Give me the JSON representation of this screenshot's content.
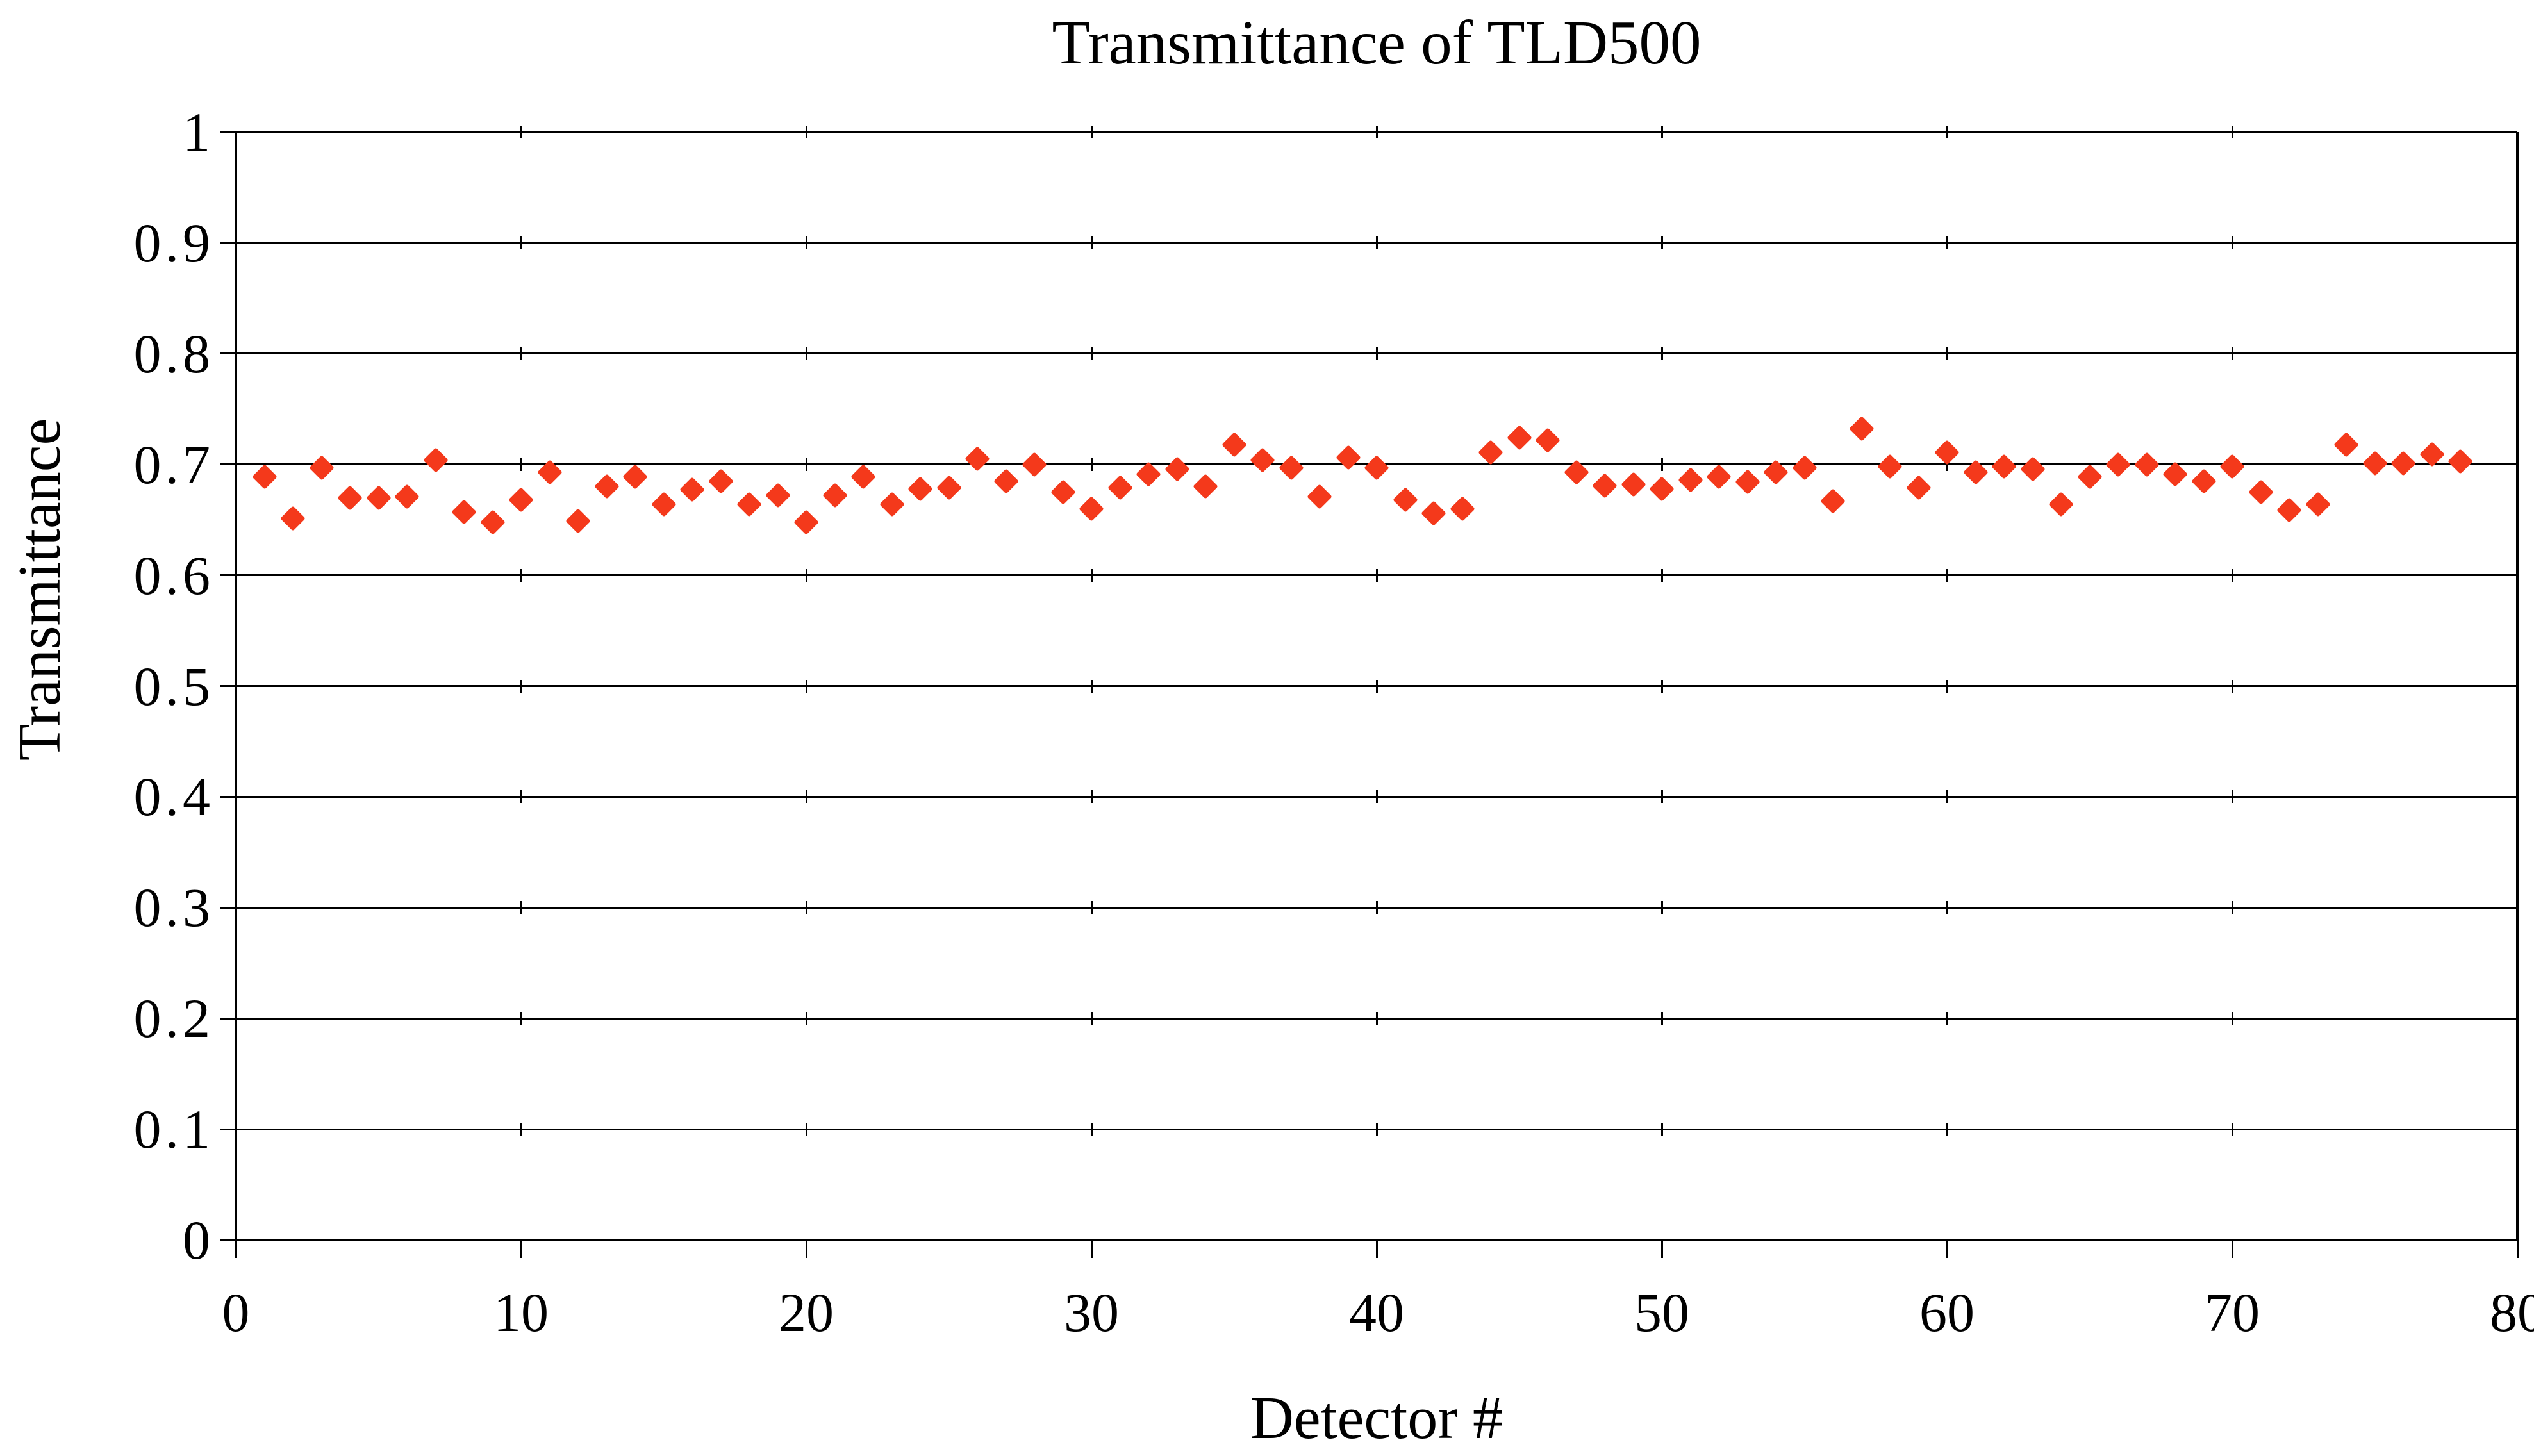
{
  "chart": {
    "title": "Transmittance of TLD500",
    "marker_color": "#f4391b",
    "line_color": "#000000",
    "background_color": "#ffffff"
  },
  "chart_data": {
    "type": "scatter",
    "title": "Transmittance of TLD500",
    "xlabel": "Detector #",
    "ylabel": "Transmittance",
    "xlim": [
      0,
      80
    ],
    "ylim": [
      0,
      1
    ],
    "x_tick_labels": [
      "0",
      "10",
      "20",
      "30",
      "40",
      "50",
      "60",
      "70",
      "80"
    ],
    "x_tick_values": [
      0,
      10,
      20,
      30,
      40,
      50,
      60,
      70,
      80
    ],
    "y_tick_labels": [
      "0",
      "0.1",
      "0.2",
      "0.3",
      "0.4",
      "0.5",
      "0.6",
      "0.7",
      "0.8",
      "0.9",
      "1"
    ],
    "y_tick_values": [
      0,
      0.1,
      0.2,
      0.3,
      0.4,
      0.5,
      0.6,
      0.7,
      0.8,
      0.9,
      1
    ],
    "grid": "horizontal",
    "legend": "none",
    "marker": "diamond",
    "series_name": "Transmittance",
    "x": [
      1,
      2,
      3,
      4,
      5,
      6,
      7,
      8,
      9,
      10,
      11,
      12,
      13,
      14,
      15,
      16,
      17,
      18,
      19,
      20,
      21,
      22,
      23,
      24,
      25,
      26,
      27,
      28,
      29,
      30,
      31,
      32,
      33,
      34,
      35,
      36,
      37,
      38,
      39,
      40,
      41,
      42,
      43,
      44,
      45,
      46,
      47,
      48,
      49,
      50,
      51,
      52,
      53,
      54,
      55,
      56,
      57,
      58,
      59,
      60,
      61,
      62,
      63,
      64,
      65,
      66,
      67,
      68,
      69,
      70,
      71,
      72,
      73,
      74,
      75,
      76,
      77,
      78
    ],
    "y": [
      0.689,
      0.651,
      0.697,
      0.67,
      0.67,
      0.671,
      0.704,
      0.657,
      0.648,
      0.668,
      0.693,
      0.649,
      0.68,
      0.689,
      0.664,
      0.677,
      0.685,
      0.664,
      0.672,
      0.648,
      0.672,
      0.689,
      0.664,
      0.678,
      0.679,
      0.705,
      0.685,
      0.7,
      0.675,
      0.66,
      0.679,
      0.691,
      0.696,
      0.68,
      0.718,
      0.704,
      0.697,
      0.671,
      0.706,
      0.697,
      0.668,
      0.656,
      0.66,
      0.711,
      0.724,
      0.722,
      0.693,
      0.681,
      0.682,
      0.678,
      0.686,
      0.689,
      0.684,
      0.693,
      0.697,
      0.667,
      0.732,
      0.698,
      0.679,
      0.711,
      0.693,
      0.698,
      0.696,
      0.664,
      0.689,
      0.7,
      0.7,
      0.691,
      0.685,
      0.698,
      0.675,
      0.659,
      0.664,
      0.718,
      0.701,
      0.701,
      0.709,
      0.703
    ]
  }
}
